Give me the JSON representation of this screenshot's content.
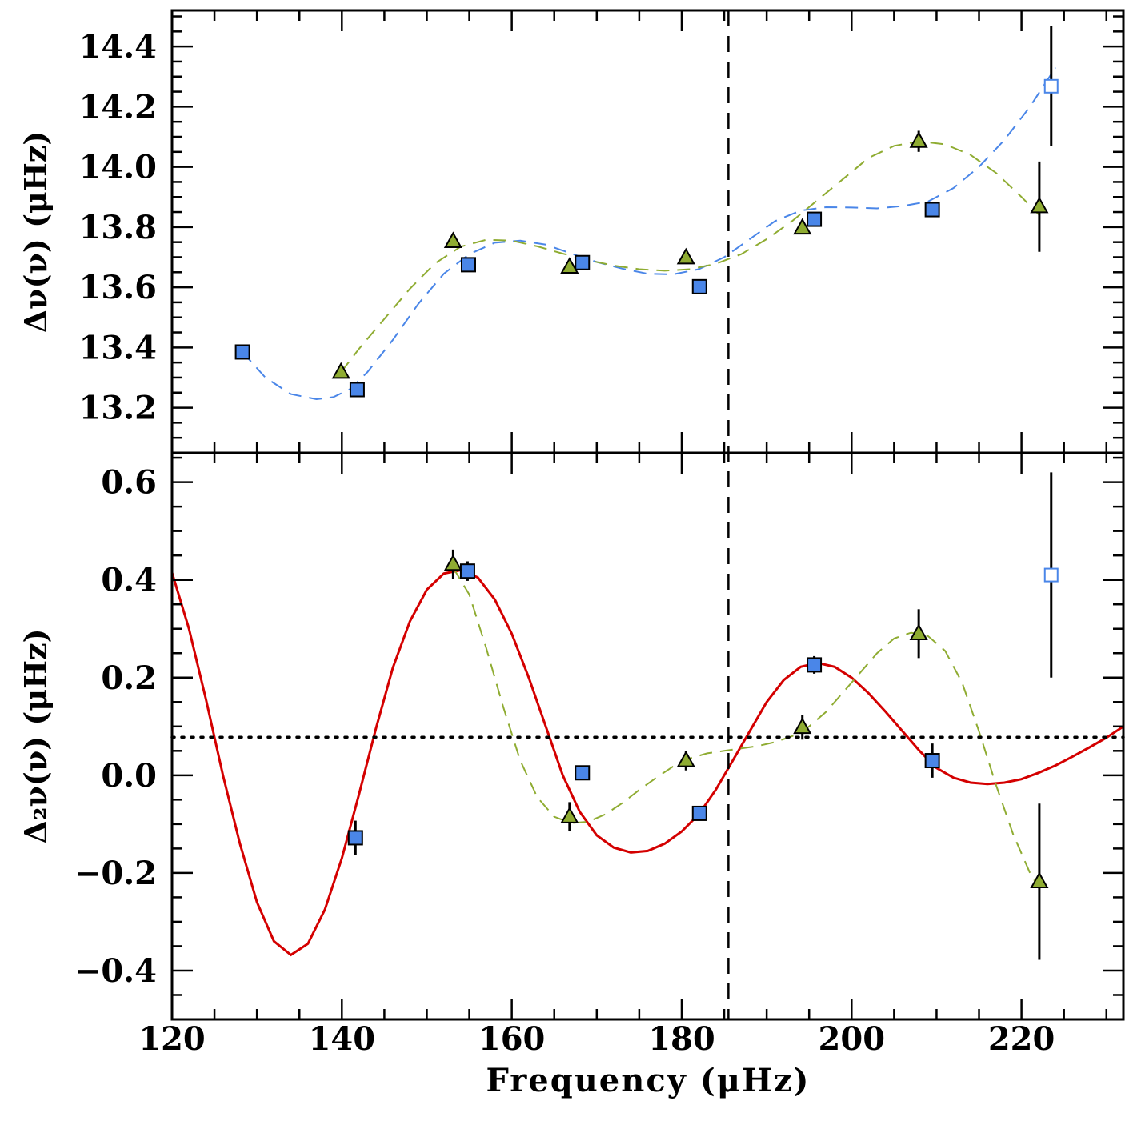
{
  "chart_data": {
    "type": "scatter",
    "xlabel": "Frequency (μHz)",
    "xlim": [
      120,
      232
    ],
    "x_ticks": [
      120,
      140,
      160,
      180,
      200,
      220
    ],
    "x_tick_labels": [
      "120",
      "140",
      "160",
      "180",
      "200",
      "220"
    ],
    "vertical_marker_x": 185.5,
    "panels": [
      {
        "name": "top",
        "ylabel": "Δν(ν) (μHz)",
        "ylim": [
          13.05,
          14.52
        ],
        "y_ticks": [
          13.2,
          13.4,
          13.6,
          13.8,
          14.0,
          14.2,
          14.4
        ],
        "y_tick_labels": [
          "13.2",
          "13.4",
          "13.6",
          "13.8",
          "14.0",
          "14.2",
          "14.4"
        ],
        "series": [
          {
            "name": "squares",
            "marker": "square",
            "color": "#4a86e8",
            "points": [
              {
                "x": 128.3,
                "y": 13.385,
                "err": 0.012
              },
              {
                "x": 141.8,
                "y": 13.26,
                "err": 0.012
              },
              {
                "x": 154.9,
                "y": 13.675,
                "err": 0.012
              },
              {
                "x": 168.3,
                "y": 13.682,
                "err": 0.012
              },
              {
                "x": 182.1,
                "y": 13.602,
                "err": 0.012
              },
              {
                "x": 195.6,
                "y": 13.826,
                "err": 0.012
              },
              {
                "x": 209.5,
                "y": 13.858,
                "err": 0.015
              }
            ],
            "open_points": [
              {
                "x": 223.5,
                "y": 14.268,
                "err": 0.2
              }
            ]
          },
          {
            "name": "triangles",
            "marker": "triangle",
            "color": "#8fac32",
            "points": [
              {
                "x": 139.9,
                "y": 13.318,
                "err": 0.012
              },
              {
                "x": 153.1,
                "y": 13.752,
                "err": 0.012
              },
              {
                "x": 166.8,
                "y": 13.667,
                "err": 0.012
              },
              {
                "x": 180.5,
                "y": 13.698,
                "err": 0.012
              },
              {
                "x": 194.2,
                "y": 13.797,
                "err": 0.012
              },
              {
                "x": 207.9,
                "y": 14.085,
                "err": 0.035
              },
              {
                "x": 222.1,
                "y": 13.868,
                "err": 0.15
              }
            ]
          }
        ],
        "curves": [
          {
            "name": "blue-fit",
            "style": "dashed",
            "color": "#4a86e8",
            "x": [
              128.3,
              131,
              134,
              137,
              139,
              141,
              143,
              146,
              149,
              152,
              155,
              158,
              161,
              164,
              167,
              170,
              173,
              176,
              179,
              182,
              185,
              188,
              191,
              194,
              197,
              200,
              203,
              206,
              209,
              212,
              215,
              218,
              221,
              224
            ],
            "y": [
              13.385,
              13.3,
              13.245,
              13.228,
              13.235,
              13.262,
              13.318,
              13.425,
              13.545,
              13.645,
              13.71,
              13.748,
              13.755,
              13.742,
              13.712,
              13.684,
              13.662,
              13.645,
              13.643,
              13.66,
              13.7,
              13.76,
              13.82,
              13.855,
              13.866,
              13.865,
              13.862,
              13.87,
              13.885,
              13.93,
              14.0,
              14.09,
              14.2,
              14.33
            ]
          },
          {
            "name": "green-fit",
            "style": "dashed",
            "color": "#8fac32",
            "x": [
              139.9,
              142,
              145,
              148,
              151,
              154,
              157,
              160,
              163,
              166,
              169,
              172,
              175,
              178,
              181,
              184,
              187,
              190,
              193,
              196,
              199,
              202,
              205,
              208,
              211,
              214,
              217,
              220,
              222.1
            ],
            "y": [
              13.318,
              13.395,
              13.495,
              13.595,
              13.68,
              13.735,
              13.758,
              13.755,
              13.736,
              13.712,
              13.69,
              13.672,
              13.66,
              13.655,
              13.66,
              13.678,
              13.71,
              13.76,
              13.82,
              13.89,
              13.96,
              14.03,
              14.07,
              14.085,
              14.075,
              14.04,
              13.98,
              13.9,
              13.84
            ]
          }
        ]
      },
      {
        "name": "bottom",
        "ylabel": "Δ₂ν(ν) (μHz)",
        "ylim": [
          -0.5,
          0.66
        ],
        "y_ticks": [
          -0.4,
          -0.2,
          0.0,
          0.2,
          0.4,
          0.6
        ],
        "y_tick_labels": [
          "−0.4",
          "−0.2",
          "0.0",
          "0.2",
          "0.4",
          "0.6"
        ],
        "horizontal_dotted_y": 0.078,
        "series": [
          {
            "name": "squares",
            "marker": "square",
            "color": "#4a86e8",
            "points": [
              {
                "x": 141.6,
                "y": -0.128,
                "err": 0.035
              },
              {
                "x": 154.8,
                "y": 0.418,
                "err": 0.02
              },
              {
                "x": 168.3,
                "y": 0.005,
                "err": 0.012
              },
              {
                "x": 182.1,
                "y": -0.078,
                "err": 0.012
              },
              {
                "x": 195.6,
                "y": 0.226,
                "err": 0.018
              },
              {
                "x": 209.5,
                "y": 0.03,
                "err": 0.035
              }
            ],
            "open_points": [
              {
                "x": 223.5,
                "y": 0.41,
                "err": 0.21
              }
            ]
          },
          {
            "name": "triangles",
            "marker": "triangle",
            "color": "#8fac32",
            "points": [
              {
                "x": 153.1,
                "y": 0.432,
                "err": 0.03
              },
              {
                "x": 166.8,
                "y": -0.085,
                "err": 0.03
              },
              {
                "x": 180.5,
                "y": 0.03,
                "err": 0.02
              },
              {
                "x": 194.2,
                "y": 0.098,
                "err": 0.025
              },
              {
                "x": 207.9,
                "y": 0.29,
                "err": 0.05
              },
              {
                "x": 222.1,
                "y": -0.218,
                "err": 0.16
              }
            ]
          }
        ],
        "curves": [
          {
            "name": "red-fit",
            "style": "solid",
            "color": "#d40000",
            "x": [
              120,
              122,
              124,
              126,
              128,
              130,
              132,
              134,
              136,
              138,
              140,
              142,
              144,
              146,
              148,
              150,
              152,
              154,
              156,
              158,
              160,
              162,
              164,
              166,
              168,
              170,
              172,
              174,
              176,
              178,
              180,
              182,
              184,
              186,
              188,
              190,
              192,
              194,
              196,
              198,
              200,
              202,
              204,
              206,
              208,
              210,
              212,
              214,
              216,
              218,
              220,
              222,
              224,
              226,
              228,
              230,
              232
            ],
            "y": [
              0.415,
              0.3,
              0.155,
              0.0,
              -0.14,
              -0.26,
              -0.34,
              -0.368,
              -0.345,
              -0.275,
              -0.17,
              -0.04,
              0.095,
              0.22,
              0.315,
              0.38,
              0.413,
              0.42,
              0.405,
              0.36,
              0.29,
              0.2,
              0.1,
              0.0,
              -0.075,
              -0.123,
              -0.148,
              -0.158,
              -0.155,
              -0.14,
              -0.115,
              -0.08,
              -0.03,
              0.03,
              0.09,
              0.15,
              0.195,
              0.222,
              0.23,
              0.222,
              0.2,
              0.168,
              0.13,
              0.09,
              0.05,
              0.015,
              -0.005,
              -0.015,
              -0.018,
              -0.015,
              -0.008,
              0.005,
              0.02,
              0.038,
              0.057,
              0.077,
              0.1
            ]
          },
          {
            "name": "green-fit",
            "style": "dashed",
            "color": "#8fac32",
            "x": [
              153.1,
              155,
              157,
              159,
              161,
              163,
              165,
              167,
              169,
              171,
              173,
              175,
              177,
              179,
              181,
              183,
              185,
              187,
              189,
              191,
              193,
              195,
              197,
              199,
              201,
              203,
              205,
              207,
              209,
              211,
              213,
              215,
              217,
              219,
              221,
              222.1
            ],
            "y": [
              0.425,
              0.37,
              0.26,
              0.14,
              0.03,
              -0.045,
              -0.085,
              -0.098,
              -0.095,
              -0.08,
              -0.057,
              -0.03,
              -0.005,
              0.018,
              0.035,
              0.045,
              0.05,
              0.055,
              0.06,
              0.068,
              0.08,
              0.1,
              0.13,
              0.17,
              0.21,
              0.25,
              0.28,
              0.292,
              0.285,
              0.255,
              0.19,
              0.09,
              -0.02,
              -0.12,
              -0.2,
              -0.232
            ]
          }
        ]
      }
    ]
  }
}
